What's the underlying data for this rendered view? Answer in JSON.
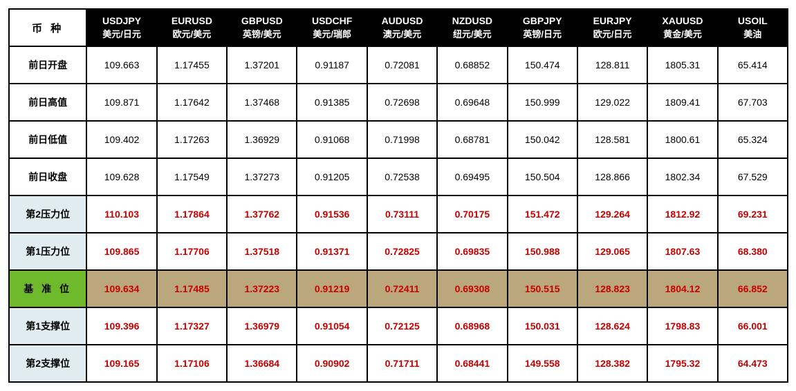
{
  "corner_label": "币 种",
  "columns": [
    {
      "symbol": "USDJPY",
      "desc": "美元/日元"
    },
    {
      "symbol": "EURUSD",
      "desc": "欧元/美元"
    },
    {
      "symbol": "GBPUSD",
      "desc": "英镑/美元"
    },
    {
      "symbol": "USDCHF",
      "desc": "美元/瑞郎"
    },
    {
      "symbol": "AUDUSD",
      "desc": "澳元/美元"
    },
    {
      "symbol": "NZDUSD",
      "desc": "纽元/美元"
    },
    {
      "symbol": "GBPJPY",
      "desc": "英镑/日元"
    },
    {
      "symbol": "EURJPY",
      "desc": "欧元/日元"
    },
    {
      "symbol": "XAUUSD",
      "desc": "黄金/美元"
    },
    {
      "symbol": "USOIL",
      "desc": "美油"
    }
  ],
  "rows": [
    {
      "label": "前日开盘",
      "kind": "plain",
      "cells": [
        "109.663",
        "1.17455",
        "1.37201",
        "0.91187",
        "0.72081",
        "0.68852",
        "150.474",
        "128.811",
        "1805.31",
        "65.414"
      ]
    },
    {
      "label": "前日高值",
      "kind": "plain",
      "cells": [
        "109.871",
        "1.17642",
        "1.37468",
        "0.91385",
        "0.72698",
        "0.69648",
        "150.999",
        "129.022",
        "1809.41",
        "67.703"
      ]
    },
    {
      "label": "前日低值",
      "kind": "plain",
      "cells": [
        "109.402",
        "1.17263",
        "1.36929",
        "0.91068",
        "0.71998",
        "0.68781",
        "150.042",
        "128.581",
        "1800.61",
        "65.324"
      ]
    },
    {
      "label": "前日收盘",
      "kind": "plain",
      "cells": [
        "109.628",
        "1.17549",
        "1.37273",
        "0.91205",
        "0.72538",
        "0.69495",
        "150.504",
        "128.866",
        "1802.34",
        "67.529"
      ]
    },
    {
      "label": "第2压力位",
      "kind": "section",
      "cells": [
        "110.103",
        "1.17864",
        "1.37762",
        "0.91536",
        "0.73111",
        "0.70175",
        "151.472",
        "129.264",
        "1812.92",
        "69.231"
      ]
    },
    {
      "label": "第1压力位",
      "kind": "section",
      "cells": [
        "109.865",
        "1.17706",
        "1.37518",
        "0.91371",
        "0.72825",
        "0.69835",
        "150.988",
        "129.065",
        "1807.63",
        "68.380"
      ]
    },
    {
      "label": "基 准 位",
      "kind": "pivot",
      "cells": [
        "109.634",
        "1.17485",
        "1.37223",
        "0.91219",
        "0.72411",
        "0.69308",
        "150.515",
        "128.823",
        "1804.12",
        "66.852"
      ]
    },
    {
      "label": "第1支撑位",
      "kind": "section",
      "cells": [
        "109.396",
        "1.17327",
        "1.36979",
        "0.91054",
        "0.72125",
        "0.68968",
        "150.031",
        "128.624",
        "1798.83",
        "66.001"
      ]
    },
    {
      "label": "第2支撑位",
      "kind": "section",
      "cells": [
        "109.165",
        "1.17106",
        "1.36684",
        "0.90902",
        "0.71711",
        "0.68441",
        "149.558",
        "128.382",
        "1795.32",
        "64.473"
      ]
    }
  ],
  "style": {
    "border_color": "#000000",
    "header_bg": "#000000",
    "header_fg": "#ffffff",
    "plain_fg": "#000000",
    "section_head_bg": "#e1ecf0",
    "section_val_fg": "#c90000",
    "pivot_head_bg": "#6fb92c",
    "pivot_val_bg": "#baa87c",
    "pivot_val_fg": "#c90000"
  }
}
